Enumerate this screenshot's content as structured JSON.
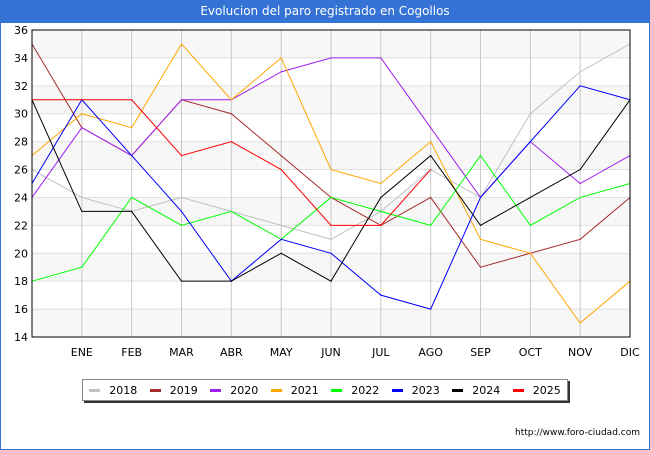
{
  "chart_data": {
    "type": "line",
    "title": "Evolucion del paro registrado en Cogollos",
    "xlabel": "",
    "ylabel": "",
    "categories": [
      "",
      "ENE",
      "FEB",
      "MAR",
      "ABR",
      "MAY",
      "JUN",
      "JUL",
      "AGO",
      "SEP",
      "OCT",
      "NOV",
      "DIC"
    ],
    "ylim": [
      14,
      36
    ],
    "yticks": [
      14,
      16,
      18,
      20,
      22,
      24,
      26,
      28,
      30,
      32,
      34,
      36
    ],
    "grid": true,
    "legend_position": "bottom",
    "series": [
      {
        "name": "2018",
        "color": "#c0c0c0",
        "values": [
          26,
          24,
          23,
          24,
          23,
          22,
          21,
          23,
          26,
          24,
          30,
          33,
          35
        ]
      },
      {
        "name": "2019",
        "color": "#a52a2a",
        "values": [
          35,
          29,
          27,
          31,
          30,
          27,
          24,
          22,
          24,
          19,
          20,
          21,
          24
        ]
      },
      {
        "name": "2020",
        "color": "#a020f0",
        "values": [
          24,
          29,
          27,
          31,
          31,
          33,
          34,
          34,
          29,
          24,
          28,
          25,
          27
        ]
      },
      {
        "name": "2021",
        "color": "#ffa500",
        "values": [
          27,
          30,
          29,
          35,
          31,
          34,
          26,
          25,
          28,
          21,
          20,
          15,
          18
        ]
      },
      {
        "name": "2022",
        "color": "#00ff00",
        "values": [
          18,
          19,
          24,
          22,
          23,
          21,
          24,
          23,
          22,
          27,
          22,
          24,
          25
        ]
      },
      {
        "name": "2023",
        "color": "#0000ff",
        "values": [
          25,
          31,
          27,
          23,
          18,
          21,
          20,
          17,
          16,
          24,
          28,
          32,
          31
        ]
      },
      {
        "name": "2024",
        "color": "#000000",
        "values": [
          31,
          23,
          23,
          18,
          18,
          20,
          18,
          24,
          27,
          22,
          24,
          26,
          31
        ]
      },
      {
        "name": "2025",
        "color": "#ff0000",
        "values": [
          31,
          31,
          31,
          27,
          28,
          26,
          22,
          22,
          26,
          null,
          null,
          null,
          null
        ]
      }
    ]
  },
  "footer": {
    "url": "http://www.foro-ciudad.com"
  }
}
